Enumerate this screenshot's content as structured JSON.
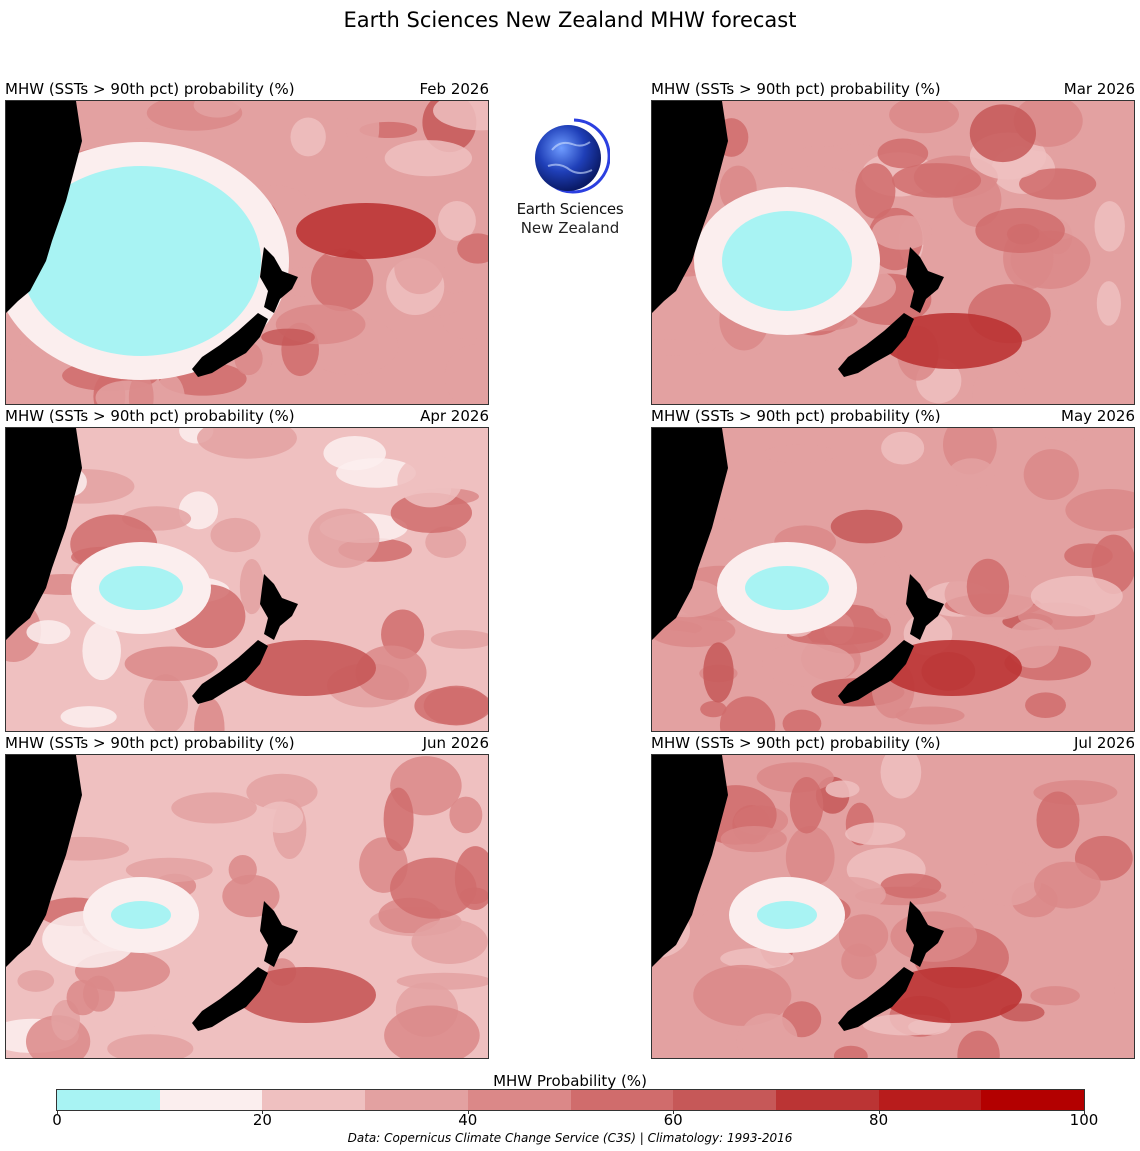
{
  "title": "Earth Sciences New Zealand MHW forecast",
  "panel_title": "MHW (SSTs > 90th pct) probability (%)",
  "panels": [
    {
      "date": "Feb 2026",
      "level": 4.2,
      "cool_patch": "large"
    },
    {
      "date": "Mar 2026",
      "level": 3.8,
      "cool_patch": "medium"
    },
    {
      "date": "Apr 2026",
      "level": 3.4,
      "cool_patch": "small"
    },
    {
      "date": "May 2026",
      "level": 3.6,
      "cool_patch": "small"
    },
    {
      "date": "Jun 2026",
      "level": 3.3,
      "cool_patch": "tiny"
    },
    {
      "date": "Jul 2026",
      "level": 3.6,
      "cool_patch": "tiny"
    }
  ],
  "logo": {
    "line1": "Earth Sciences",
    "line2": "New Zealand"
  },
  "colorbar": {
    "label": "MHW Probability (%)",
    "ticks": [
      "0",
      "20",
      "40",
      "60",
      "80",
      "100"
    ],
    "colors": [
      "#a8f3f3",
      "#fbeeee",
      "#efc0c0",
      "#e3a1a1",
      "#db8888",
      "#d06c6c",
      "#c65858",
      "#bb3434",
      "#b81c1c",
      "#b30000"
    ]
  },
  "credit": "Data: Copernicus Climate Change Service (C3S) | Climatology: 1993-2016"
}
